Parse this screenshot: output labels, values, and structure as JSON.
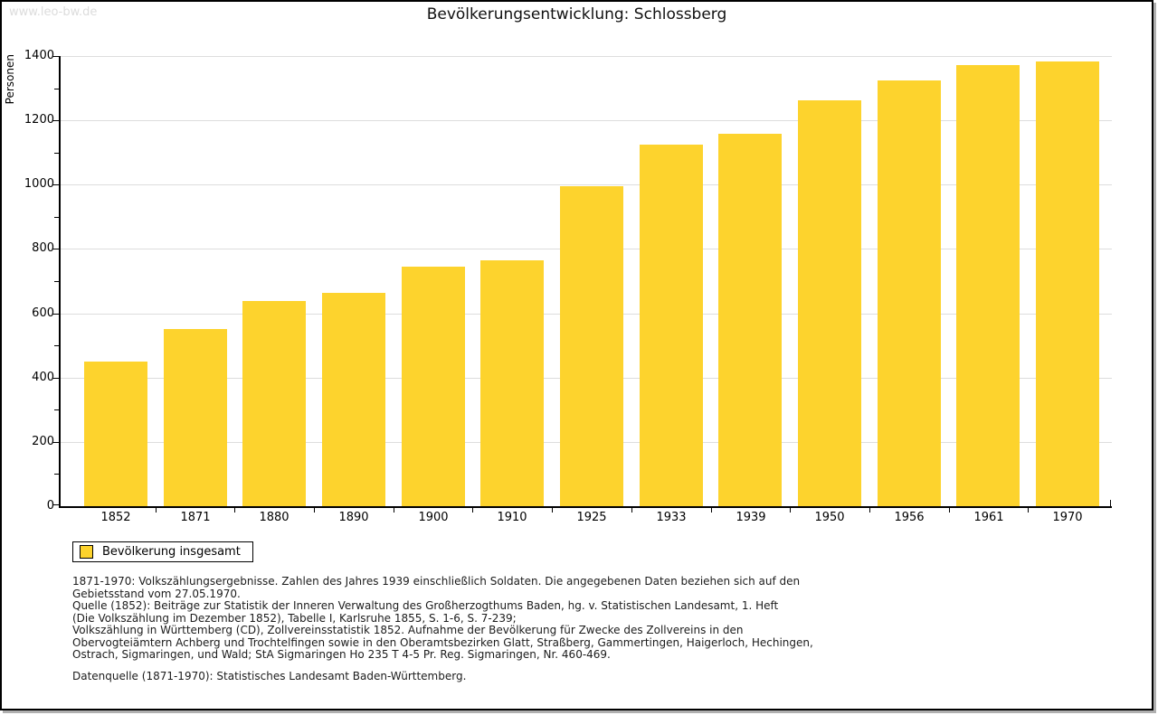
{
  "watermark": "www.leo-bw.de",
  "chart_data": {
    "type": "bar",
    "title": "Bevölkerungsentwicklung: Schlossberg",
    "xlabel": "",
    "ylabel": "Personen",
    "categories": [
      "1852",
      "1871",
      "1880",
      "1890",
      "1900",
      "1910",
      "1925",
      "1933",
      "1939",
      "1950",
      "1956",
      "1961",
      "1970"
    ],
    "series": [
      {
        "name": "Bevölkerung insgesamt",
        "values": [
          450,
          551,
          638,
          665,
          744,
          766,
          995,
          1124,
          1158,
          1261,
          1323,
          1373,
          1382
        ]
      }
    ],
    "ylim": [
      0,
      1400
    ],
    "y_major_ticks": [
      0,
      200,
      400,
      600,
      800,
      1000,
      1200,
      1400
    ],
    "y_minor_step": 100,
    "grid": "horizontal-major",
    "bar_color": "#FDD32D",
    "gridline_color": "#dddddd",
    "legend_position": "bottom-left"
  },
  "legend": {
    "items": [
      {
        "label": "Bevölkerung insgesamt",
        "color": "#FDD32D"
      }
    ]
  },
  "footnotes": {
    "lines": [
      "1871-1970: Volkszählungsergebnisse. Zahlen des Jahres 1939 einschließlich Soldaten. Die angegebenen Daten beziehen sich auf den",
      "Gebietsstand vom 27.05.1970.",
      "Quelle (1852): Beiträge zur Statistik der Inneren Verwaltung des Großherzogthums Baden, hg. v. Statistischen Landesamt, 1. Heft",
      "(Die Volkszählung im Dezember 1852), Tabelle I, Karlsruhe 1855, S. 1-6, S. 7-239;",
      "Volkszählung in Württemberg (CD), Zollvereinsstatistik 1852. Aufnahme der Bevölkerung für Zwecke des Zollvereins in den",
      "Obervogteiämtern Achberg und Trochtelfingen sowie in den Oberamtsbezirken Glatt, Straßberg, Gammertingen, Haigerloch, Hechingen,",
      "Ostrach, Sigmaringen, und Wald; StA Sigmaringen Ho 235 T 4-5 Pr. Reg. Sigmaringen, Nr. 460-469."
    ],
    "datasource": "Datenquelle (1871-1970): Statistisches Landesamt Baden-Württemberg."
  }
}
